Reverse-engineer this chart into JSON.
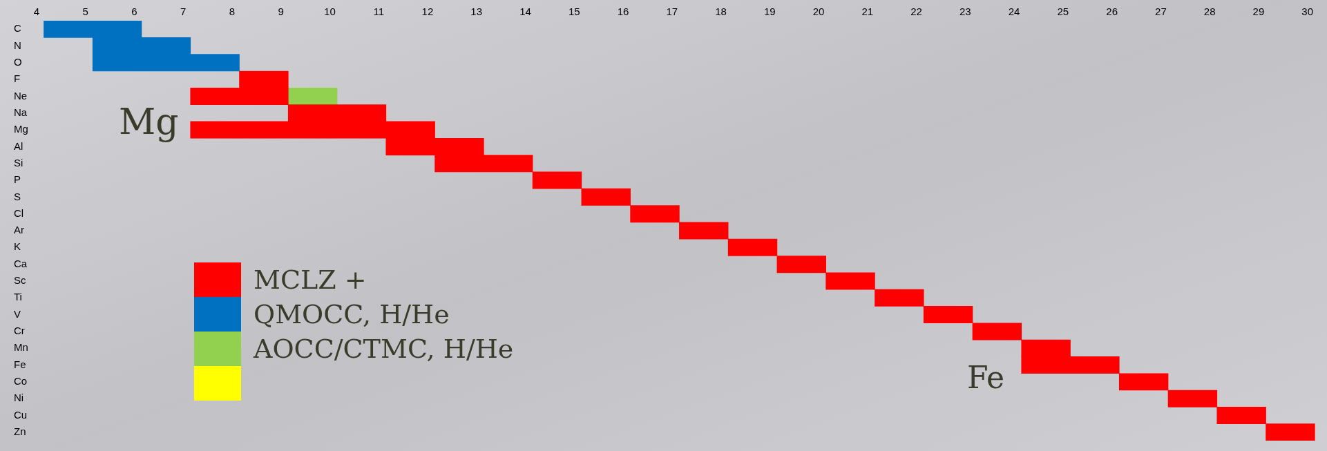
{
  "chart_data": {
    "type": "bar",
    "orientation": "horizontal",
    "categories": [
      "C",
      "N",
      "O",
      "F",
      "Ne",
      "Na",
      "Mg",
      "Al",
      "Si",
      "P",
      "S",
      "Cl",
      "Ar",
      "K",
      "Ca",
      "Sc",
      "Ti",
      "V",
      "Cr",
      "Mn",
      "Fe",
      "Co",
      "Ni",
      "Cu",
      "Zn"
    ],
    "series": [
      {
        "name": "MCLZ +",
        "color": "#ff0000",
        "values": [
          null,
          null,
          null,
          1,
          2,
          2,
          5,
          2,
          2,
          1,
          1,
          1,
          1,
          1,
          1,
          1,
          1,
          1,
          1,
          1,
          2,
          1,
          1,
          1,
          1
        ],
        "base": [
          null,
          null,
          null,
          8.15,
          7.15,
          9.15,
          7.15,
          11.15,
          12.15,
          14.15,
          15.15,
          16.15,
          17.15,
          18.15,
          19.15,
          20.15,
          21.15,
          22.15,
          23.15,
          24.15,
          24.15,
          26.15,
          27.15,
          28.15,
          29.15
        ]
      },
      {
        "name": "QMOCC, H/He",
        "color": "#0070c0",
        "values": [
          2,
          2,
          3,
          null,
          null,
          null,
          null,
          null,
          null,
          null,
          null,
          null,
          null,
          null,
          null,
          null,
          null,
          null,
          null,
          null,
          null,
          null,
          null,
          null,
          null
        ],
        "base": [
          4.15,
          5.15,
          5.15,
          null,
          null,
          null,
          null,
          null,
          null,
          null,
          null,
          null,
          null,
          null,
          null,
          null,
          null,
          null,
          null,
          null,
          null,
          null,
          null,
          null,
          null
        ]
      },
      {
        "name": "AOCC/CTMC, H/He",
        "color": "#92d050",
        "values": [
          null,
          null,
          null,
          null,
          1,
          null,
          null,
          null,
          null,
          null,
          null,
          null,
          null,
          null,
          null,
          null,
          null,
          null,
          null,
          null,
          null,
          null,
          null,
          null,
          null
        ],
        "base": [
          null,
          null,
          null,
          null,
          9.15,
          null,
          null,
          null,
          null,
          null,
          null,
          null,
          null,
          null,
          null,
          null,
          null,
          null,
          null,
          null,
          null,
          null,
          null,
          null,
          null
        ]
      },
      {
        "color": "#ffff00",
        "values": [
          null,
          null,
          null,
          null,
          null,
          null,
          null,
          null,
          null,
          null,
          null,
          null,
          null,
          null,
          null,
          null,
          null,
          null,
          null,
          null,
          null,
          null,
          null,
          null,
          null
        ]
      }
    ],
    "xlim": [
      4,
      30.4
    ],
    "xticks": [
      4,
      5,
      6,
      7,
      8,
      9,
      10,
      11,
      12,
      13,
      14,
      15,
      16,
      17,
      18,
      19,
      20,
      21,
      22,
      23,
      24,
      25,
      26,
      27,
      28,
      29,
      30
    ],
    "grid": false,
    "legend": "bottom left",
    "annotations": [
      "Mg",
      "Fe"
    ]
  }
}
